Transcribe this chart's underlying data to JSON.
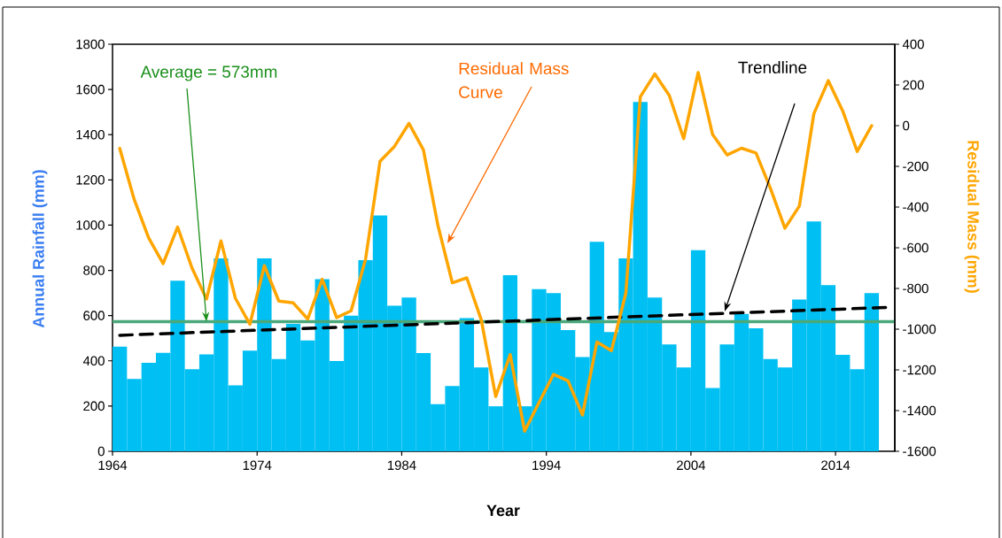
{
  "chart_data": {
    "type": "bar",
    "xlabel": "Year",
    "ylabel": "Annual Rainfall (mm)",
    "y2label": "Residual Mass (mm)",
    "x": [
      1964,
      1965,
      1966,
      1967,
      1968,
      1969,
      1970,
      1971,
      1972,
      1973,
      1974,
      1975,
      1976,
      1977,
      1978,
      1979,
      1980,
      1981,
      1982,
      1983,
      1984,
      1985,
      1986,
      1987,
      1988,
      1989,
      1990,
      1991,
      1992,
      1993,
      1994,
      1995,
      1996,
      1997,
      1998,
      1999,
      2000,
      2001,
      2002,
      2003,
      2004,
      2005,
      2006,
      2007,
      2008,
      2009,
      2010,
      2011,
      2012,
      2013,
      2014,
      2015,
      2016
    ],
    "xlim": [
      1963.5,
      2017.6
    ],
    "xticks": [
      {
        "value": 1963.5,
        "label": "1964"
      },
      {
        "value": 1973.5,
        "label": "1974"
      },
      {
        "value": 1983.5,
        "label": "1984"
      },
      {
        "value": 1993.5,
        "label": "1994"
      },
      {
        "value": 2003.5,
        "label": "2004"
      },
      {
        "value": 2013.5,
        "label": "2014"
      }
    ],
    "ylim": [
      0,
      1800
    ],
    "yticks": [
      0,
      200,
      400,
      600,
      800,
      1000,
      1200,
      1400,
      1600,
      1800
    ],
    "y2lim": [
      -1600,
      400
    ],
    "y2ticks": [
      -1600,
      -1400,
      -1200,
      -1000,
      -800,
      -600,
      -400,
      -200,
      0,
      200,
      400
    ],
    "series": [
      {
        "color": "#00bff3",
        "values": [
          463,
          320,
          391,
          435,
          754,
          363,
          428,
          853,
          291,
          445,
          853,
          408,
          563,
          490,
          761,
          399,
          600,
          845,
          1043,
          644,
          680,
          434,
          208,
          289,
          589,
          371,
          199,
          779,
          199,
          717,
          699,
          536,
          417,
          926,
          527,
          853,
          1545,
          680,
          472,
          371,
          889,
          280,
          472,
          607,
          544,
          408,
          371,
          671,
          1016,
          735,
          426,
          363,
          699
        ]
      },
      {
        "type": "line",
        "axis": "y2",
        "color": "#ffa500",
        "values": [
          -112,
          -363,
          -552,
          -678,
          -498,
          -700,
          -852,
          -566,
          -849,
          -976,
          -688,
          -862,
          -871,
          -950,
          -755,
          -943,
          -910,
          -656,
          -175,
          -102,
          11,
          -119,
          -489,
          -772,
          -748,
          -954,
          -1331,
          -1125,
          -1501,
          -1360,
          -1222,
          -1254,
          -1422,
          -1063,
          -1106,
          -823,
          142,
          254,
          149,
          -64,
          261,
          -44,
          -144,
          -111,
          -134,
          -308,
          -504,
          -395,
          58,
          221,
          72,
          -127,
          0
        ]
      },
      {
        "type": "line",
        "x": [
          1964,
          2017
        ],
        "color": "#000000",
        "line_style": "dashed",
        "values": [
          513,
          636
        ]
      }
    ],
    "ref_lines": [
      {
        "axis": "y",
        "value": 573,
        "color": "#4aa87a"
      }
    ],
    "annotations": [
      {
        "text": "Average = 573mm",
        "x": 1970,
        "y": 573
      },
      "Residual Mass Curve",
      "Trendline"
    ]
  }
}
